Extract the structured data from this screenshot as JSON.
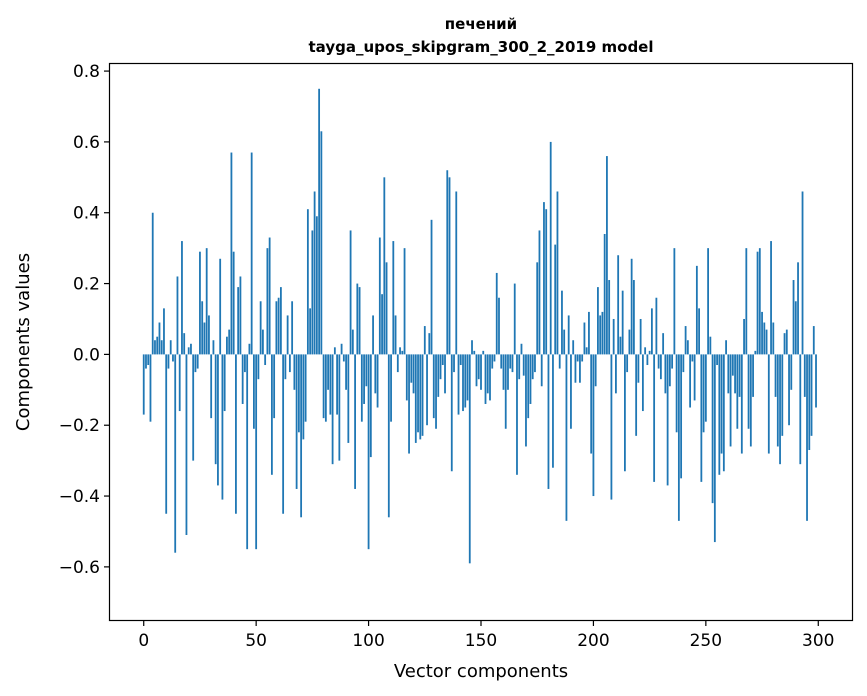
{
  "chart_data": {
    "type": "bar",
    "title_line1": "печений",
    "title_line2": "tayga_upos_skipgram_300_2_2019 model",
    "xlabel": "Vector components",
    "ylabel": "Components values",
    "xlim": [
      -15,
      315
    ],
    "ylim": [
      -0.75,
      0.82
    ],
    "xticks": [
      0,
      50,
      100,
      150,
      200,
      250,
      300
    ],
    "xtick_labels": [
      "0",
      "50",
      "100",
      "150",
      "200",
      "250",
      "300"
    ],
    "yticks": [
      -0.6,
      -0.4,
      -0.2,
      0.0,
      0.2,
      0.4,
      0.6,
      0.8
    ],
    "ytick_labels": [
      "−0.6",
      "−0.4",
      "−0.2",
      "0.0",
      "0.2",
      "0.4",
      "0.6",
      "0.8"
    ],
    "bar_color": "#1f77b4",
    "grid": false,
    "values": [
      -0.17,
      -0.04,
      -0.03,
      -0.19,
      0.4,
      0.04,
      0.05,
      0.09,
      0.04,
      0.13,
      -0.45,
      -0.04,
      0.04,
      -0.02,
      -0.56,
      0.22,
      -0.16,
      0.32,
      0.06,
      -0.51,
      0.02,
      0.03,
      -0.3,
      -0.05,
      -0.04,
      0.29,
      0.15,
      0.09,
      0.3,
      0.11,
      -0.18,
      0.04,
      -0.31,
      -0.37,
      0.27,
      -0.41,
      -0.16,
      0.05,
      0.07,
      0.57,
      0.29,
      -0.45,
      0.19,
      0.22,
      -0.14,
      -0.05,
      -0.55,
      0.03,
      0.57,
      -0.21,
      -0.55,
      -0.07,
      0.15,
      0.07,
      -0.03,
      0.3,
      0.33,
      -0.34,
      -0.18,
      0.15,
      0.16,
      0.19,
      -0.45,
      -0.07,
      0.11,
      -0.05,
      0.15,
      -0.1,
      -0.38,
      -0.22,
      -0.46,
      -0.24,
      -0.19,
      0.41,
      0.13,
      0.35,
      0.46,
      0.39,
      0.75,
      0.63,
      -0.18,
      -0.19,
      -0.1,
      -0.17,
      -0.31,
      0.02,
      -0.17,
      -0.3,
      0.03,
      -0.02,
      -0.1,
      -0.25,
      0.35,
      0.07,
      -0.38,
      0.2,
      0.19,
      -0.19,
      -0.14,
      -0.09,
      -0.55,
      -0.29,
      0.11,
      -0.11,
      -0.15,
      0.33,
      0.17,
      0.5,
      0.26,
      -0.46,
      -0.19,
      0.32,
      0.11,
      -0.05,
      0.02,
      0.01,
      0.3,
      -0.13,
      -0.28,
      -0.08,
      -0.11,
      -0.25,
      -0.22,
      -0.24,
      -0.23,
      0.08,
      -0.2,
      0.06,
      0.38,
      -0.18,
      -0.21,
      -0.12,
      -0.07,
      -0.03,
      -0.11,
      0.52,
      0.5,
      -0.33,
      -0.05,
      0.46,
      -0.17,
      -0.03,
      -0.16,
      -0.15,
      -0.13,
      -0.59,
      0.04,
      0.01,
      -0.09,
      -0.07,
      -0.1,
      0.01,
      -0.14,
      -0.11,
      -0.13,
      -0.04,
      -0.02,
      0.23,
      0.16,
      -0.04,
      -0.1,
      -0.21,
      -0.1,
      -0.04,
      -0.05,
      0.2,
      -0.34,
      -0.07,
      0.03,
      -0.06,
      -0.26,
      -0.18,
      -0.14,
      -0.07,
      -0.05,
      0.26,
      0.35,
      -0.09,
      0.43,
      0.41,
      -0.38,
      0.6,
      -0.32,
      0.31,
      0.46,
      -0.04,
      0.18,
      0.07,
      -0.47,
      0.11,
      -0.21,
      0.04,
      -0.08,
      -0.02,
      -0.08,
      -0.02,
      0.09,
      0.02,
      0.12,
      -0.28,
      -0.4,
      -0.09,
      0.19,
      0.11,
      0.12,
      0.34,
      0.56,
      0.21,
      -0.41,
      0.1,
      -0.11,
      0.28,
      0.05,
      0.18,
      -0.33,
      -0.05,
      0.07,
      0.27,
      0.21,
      -0.23,
      -0.08,
      0.1,
      -0.16,
      0.02,
      -0.03,
      0.01,
      0.13,
      -0.36,
      0.16,
      -0.04,
      -0.07,
      0.06,
      -0.11,
      -0.37,
      -0.09,
      -0.04,
      0.3,
      -0.22,
      -0.47,
      -0.35,
      -0.05,
      0.08,
      0.04,
      -0.15,
      -0.02,
      -0.13,
      0.25,
      0.13,
      -0.36,
      -0.22,
      -0.19,
      0.3,
      0.05,
      -0.42,
      -0.53,
      -0.03,
      -0.34,
      -0.28,
      -0.33,
      0.04,
      -0.11,
      -0.26,
      -0.06,
      -0.11,
      -0.21,
      -0.12,
      -0.28,
      0.1,
      0.3,
      -0.21,
      -0.26,
      -0.12,
      0.01,
      0.29,
      0.3,
      0.12,
      0.09,
      0.07,
      -0.28,
      0.32,
      0.09,
      -0.12,
      -0.26,
      -0.31,
      -0.23,
      0.06,
      0.07,
      -0.2,
      -0.1,
      0.21,
      0.15,
      0.26,
      -0.31,
      0.46,
      -0.12,
      -0.47,
      -0.27,
      -0.23,
      0.08,
      -0.15
    ]
  }
}
